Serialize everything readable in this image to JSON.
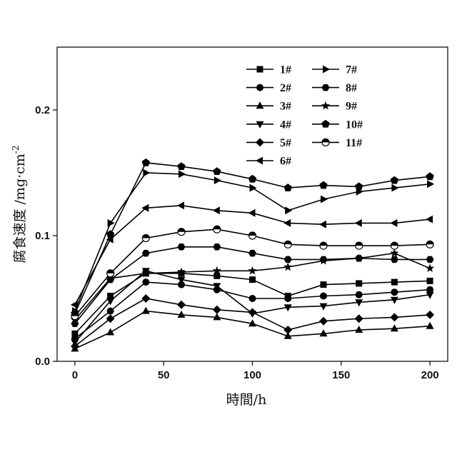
{
  "chart_data": {
    "type": "line",
    "xlabel": "時間/h",
    "ylabel": "腐食速度 /mg·cm",
    "ylabel_sup": "-2",
    "xlim": [
      -10,
      210
    ],
    "ylim": [
      0.0,
      0.25
    ],
    "xticks": [
      0,
      50,
      100,
      150,
      200
    ],
    "yticks": [
      0.0,
      0.1,
      0.2
    ],
    "ytick_labels": [
      "0.0",
      "0.1",
      "0.2"
    ],
    "grid": false,
    "legend_position": "top-right",
    "x": [
      0,
      20,
      40,
      60,
      80,
      100,
      120,
      140,
      160,
      180,
      200
    ],
    "series": [
      {
        "name": "1#",
        "marker": "square",
        "values": [
          0.022,
          0.052,
          0.07,
          0.07,
          0.068,
          0.065,
          0.052,
          0.061,
          0.062,
          0.063,
          0.064
        ]
      },
      {
        "name": "2#",
        "marker": "circle",
        "values": [
          0.018,
          0.04,
          0.063,
          0.061,
          0.057,
          0.05,
          0.05,
          0.052,
          0.053,
          0.055,
          0.057
        ]
      },
      {
        "name": "3#",
        "marker": "triangle-up",
        "values": [
          0.01,
          0.023,
          0.04,
          0.037,
          0.035,
          0.03,
          0.02,
          0.022,
          0.025,
          0.026,
          0.028
        ]
      },
      {
        "name": "4#",
        "marker": "triangle-down",
        "values": [
          0.015,
          0.048,
          0.072,
          0.065,
          0.06,
          0.038,
          0.043,
          0.044,
          0.047,
          0.049,
          0.053
        ]
      },
      {
        "name": "5#",
        "marker": "diamond",
        "values": [
          0.012,
          0.034,
          0.05,
          0.045,
          0.041,
          0.039,
          0.025,
          0.032,
          0.034,
          0.035,
          0.037
        ]
      },
      {
        "name": "6#",
        "marker": "triangle-left",
        "values": [
          0.045,
          0.097,
          0.122,
          0.124,
          0.12,
          0.118,
          0.11,
          0.109,
          0.11,
          0.11,
          0.113
        ]
      },
      {
        "name": "7#",
        "marker": "triangle-right",
        "values": [
          0.04,
          0.11,
          0.15,
          0.149,
          0.144,
          0.138,
          0.12,
          0.129,
          0.135,
          0.138,
          0.141
        ]
      },
      {
        "name": "8#",
        "marker": "hexagon",
        "values": [
          0.03,
          0.065,
          0.086,
          0.091,
          0.091,
          0.086,
          0.081,
          0.081,
          0.082,
          0.081,
          0.081
        ]
      },
      {
        "name": "9#",
        "marker": "star",
        "values": [
          0.033,
          0.066,
          0.07,
          0.071,
          0.072,
          0.072,
          0.075,
          0.08,
          0.082,
          0.086,
          0.074
        ]
      },
      {
        "name": "10#",
        "marker": "pentagon",
        "values": [
          0.038,
          0.101,
          0.158,
          0.155,
          0.151,
          0.145,
          0.138,
          0.14,
          0.139,
          0.144,
          0.147
        ]
      },
      {
        "name": "11#",
        "marker": "half-circle",
        "values": [
          0.036,
          0.07,
          0.098,
          0.103,
          0.105,
          0.1,
          0.093,
          0.092,
          0.092,
          0.092,
          0.093
        ]
      }
    ]
  }
}
